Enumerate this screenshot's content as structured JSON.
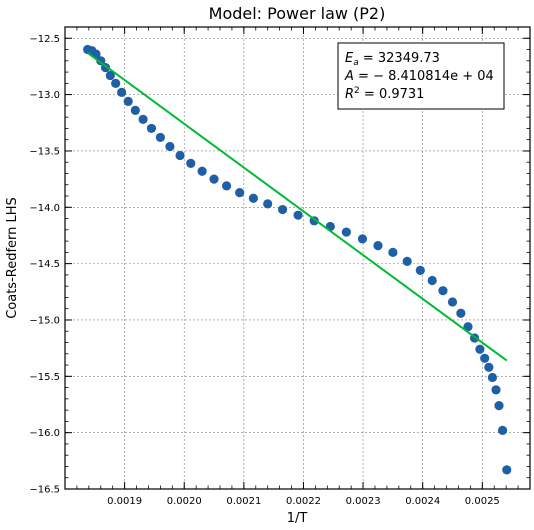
{
  "chart_data": {
    "type": "scatter",
    "title": "Model: Power law (P2)",
    "xlabel": "1/T",
    "ylabel": "Coats-Redfern LHS",
    "xlim": [
      0.0018,
      0.00258
    ],
    "ylim": [
      -16.5,
      -12.4
    ],
    "xticks": [
      0.0019,
      0.002,
      0.0021,
      0.0022,
      0.0023,
      0.0024,
      0.0025
    ],
    "xtick_labels": [
      "0.0019",
      "0.0020",
      "0.0021",
      "0.0022",
      "0.0023",
      "0.0024",
      "0.0025"
    ],
    "yticks": [
      -12.5,
      -13.0,
      -13.5,
      -14.0,
      -14.5,
      -15.0,
      -15.5,
      -16.0,
      -16.5
    ],
    "ytick_labels": [
      "−12.5",
      "−13.0",
      "−13.5",
      "−14.0",
      "−14.5",
      "−15.0",
      "−15.5",
      "−16.0",
      "−16.5"
    ],
    "grid": true,
    "series": [
      {
        "kind": "scatter",
        "color": "#1f5fa6",
        "x": [
          0.001838,
          0.001845,
          0.001852,
          0.00186,
          0.001868,
          0.001876,
          0.001885,
          0.001895,
          0.001906,
          0.001918,
          0.001931,
          0.001945,
          0.00196,
          0.001976,
          0.001993,
          0.002011,
          0.00203,
          0.00205,
          0.002071,
          0.002093,
          0.002116,
          0.00214,
          0.002165,
          0.002191,
          0.002218,
          0.002245,
          0.002272,
          0.002299,
          0.002325,
          0.00235,
          0.002374,
          0.002396,
          0.002416,
          0.002434,
          0.00245,
          0.002464,
          0.002476,
          0.002487,
          0.002496,
          0.002504,
          0.002511,
          0.002517,
          0.002523,
          0.002528,
          0.002534,
          0.002541
        ],
        "y": [
          -12.6,
          -12.61,
          -12.64,
          -12.7,
          -12.76,
          -12.83,
          -12.9,
          -12.98,
          -13.06,
          -13.14,
          -13.22,
          -13.3,
          -13.38,
          -13.46,
          -13.54,
          -13.61,
          -13.68,
          -13.75,
          -13.81,
          -13.87,
          -13.92,
          -13.97,
          -14.02,
          -14.07,
          -14.12,
          -14.17,
          -14.22,
          -14.28,
          -14.34,
          -14.4,
          -14.48,
          -14.56,
          -14.65,
          -14.74,
          -14.84,
          -14.94,
          -15.06,
          -15.16,
          -15.26,
          -15.34,
          -15.42,
          -15.51,
          -15.62,
          -15.76,
          -15.98,
          -16.33
        ]
      },
      {
        "kind": "line",
        "color": "#00bb33",
        "x": [
          0.001838,
          0.002541
        ],
        "y": [
          -12.63,
          -15.36
        ]
      }
    ],
    "annotation": {
      "lines": [
        {
          "lhs": "E",
          "sub": "a",
          "sup": "",
          "rhs": " = 32349.73"
        },
        {
          "lhs": "A",
          "sub": "",
          "sup": "",
          "rhs": " = − 8.410814e + 04"
        },
        {
          "lhs": "R",
          "sub": "",
          "sup": "2",
          "rhs": " = 0.9731"
        }
      ],
      "position": "top-right"
    }
  }
}
